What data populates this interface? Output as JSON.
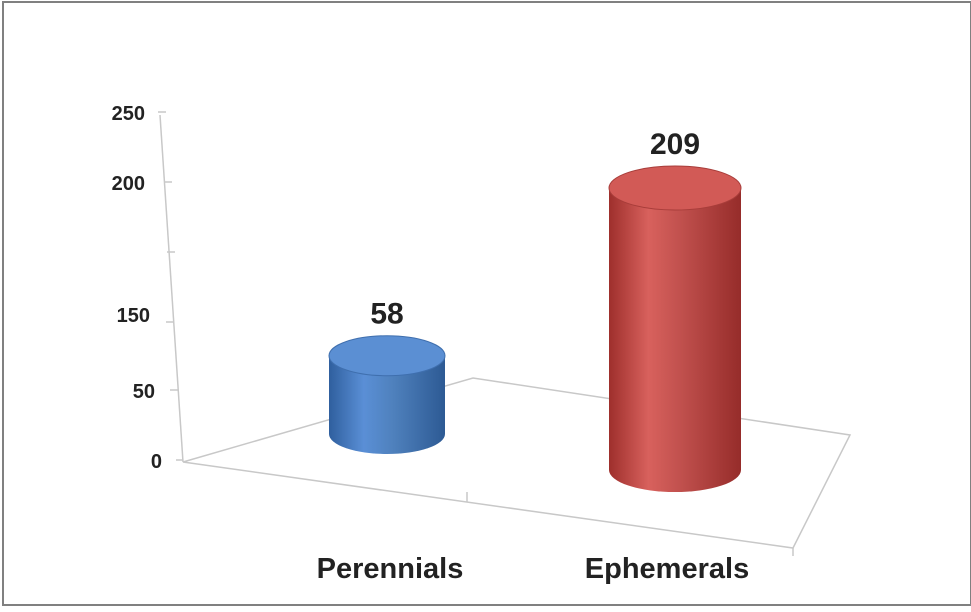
{
  "chart_data": {
    "type": "bar",
    "style": "3d-cylinder",
    "categories": [
      "Perennials",
      "Ephemerals"
    ],
    "values": [
      58,
      209
    ],
    "y_tick_labels": [
      "0",
      "50",
      "150",
      "200",
      "250"
    ],
    "data_labels": [
      "58",
      "209"
    ],
    "grid": false,
    "legend": "none",
    "title": "",
    "xlabel": "",
    "ylabel": ""
  },
  "colors": {
    "perennials": "#4f81bd",
    "ephemerals": "#c0504d",
    "axis": "#bfbfbf",
    "frame": "#808080",
    "text": "#222222"
  }
}
